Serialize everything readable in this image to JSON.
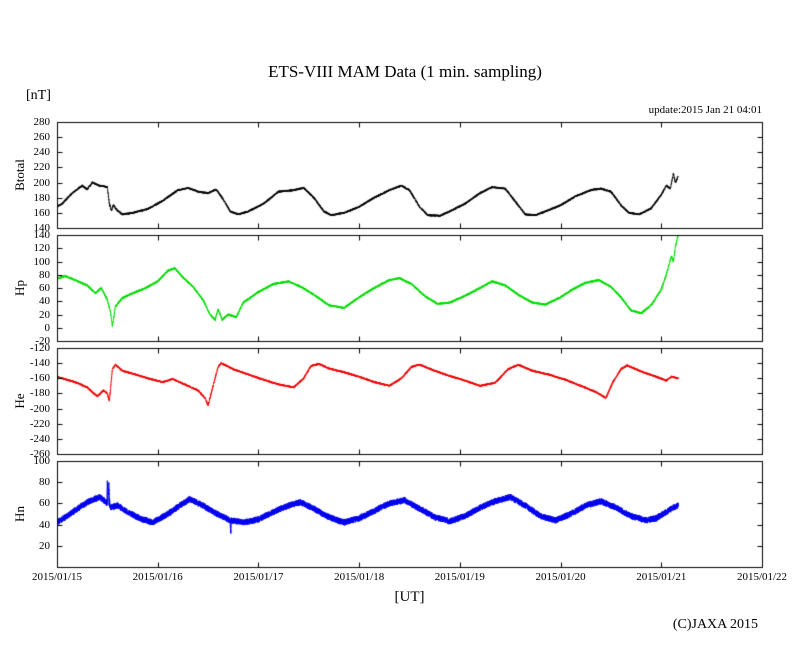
{
  "page": {
    "background": "#ffffff"
  },
  "chart_data": {
    "type": "line",
    "title": "ETS-VIII MAM Data (1 min. sampling)",
    "unit_label": "[nT]",
    "update_text": "update:2015 Jan 21 04:01",
    "xlabel": "[UT]",
    "copyright": "(C)JAXA 2015",
    "x_tick_labels": [
      "2015/01/15",
      "2015/01/16",
      "2015/01/17",
      "2015/01/18",
      "2015/01/19",
      "2015/01/20",
      "2015/01/21",
      "2015/01/22"
    ],
    "x_range_days": [
      0,
      7
    ],
    "data_end_day": 6.167,
    "sampling_minutes": 1,
    "grid": false,
    "legend": "none",
    "panels": [
      {
        "name": "Btotal",
        "color": "#000000",
        "ylim": [
          140,
          280
        ],
        "yticks": [
          140,
          160,
          180,
          200,
          220,
          240,
          260,
          280
        ],
        "noise_amplitude": 1.3,
        "points": [
          [
            0,
            168
          ],
          [
            0.05,
            172
          ],
          [
            0.15,
            186
          ],
          [
            0.25,
            196
          ],
          [
            0.3,
            191
          ],
          [
            0.35,
            200
          ],
          [
            0.42,
            196
          ],
          [
            0.5,
            194
          ],
          [
            0.52,
            172
          ],
          [
            0.54,
            163
          ],
          [
            0.56,
            170
          ],
          [
            0.6,
            163
          ],
          [
            0.65,
            158
          ],
          [
            0.75,
            160
          ],
          [
            0.9,
            165
          ],
          [
            1.05,
            176
          ],
          [
            1.2,
            190
          ],
          [
            1.3,
            193
          ],
          [
            1.4,
            188
          ],
          [
            1.5,
            186
          ],
          [
            1.58,
            191
          ],
          [
            1.65,
            178
          ],
          [
            1.72,
            162
          ],
          [
            1.8,
            158
          ],
          [
            1.9,
            162
          ],
          [
            2.05,
            172
          ],
          [
            2.2,
            188
          ],
          [
            2.35,
            190
          ],
          [
            2.45,
            193
          ],
          [
            2.55,
            180
          ],
          [
            2.65,
            162
          ],
          [
            2.72,
            157
          ],
          [
            2.85,
            160
          ],
          [
            3,
            168
          ],
          [
            3.15,
            180
          ],
          [
            3.3,
            190
          ],
          [
            3.42,
            196
          ],
          [
            3.5,
            190
          ],
          [
            3.6,
            168
          ],
          [
            3.68,
            157
          ],
          [
            3.8,
            156
          ],
          [
            3.9,
            162
          ],
          [
            4.05,
            172
          ],
          [
            4.2,
            186
          ],
          [
            4.32,
            194
          ],
          [
            4.45,
            192
          ],
          [
            4.55,
            175
          ],
          [
            4.65,
            158
          ],
          [
            4.75,
            157
          ],
          [
            4.85,
            162
          ],
          [
            5,
            170
          ],
          [
            5.15,
            182
          ],
          [
            5.3,
            190
          ],
          [
            5.4,
            192
          ],
          [
            5.5,
            188
          ],
          [
            5.6,
            170
          ],
          [
            5.68,
            160
          ],
          [
            5.78,
            158
          ],
          [
            5.9,
            166
          ],
          [
            6,
            184
          ],
          [
            6.05,
            196
          ],
          [
            6.09,
            192
          ],
          [
            6.12,
            212
          ],
          [
            6.14,
            200
          ],
          [
            6.167,
            208
          ]
        ]
      },
      {
        "name": "Hp",
        "color": "#00dd00",
        "ylim": [
          -20,
          140
        ],
        "yticks": [
          -20,
          0,
          20,
          40,
          60,
          80,
          100,
          120,
          140
        ],
        "noise_amplitude": 1.6,
        "points": [
          [
            0,
            74
          ],
          [
            0.08,
            78
          ],
          [
            0.18,
            72
          ],
          [
            0.3,
            64
          ],
          [
            0.38,
            52
          ],
          [
            0.44,
            60
          ],
          [
            0.5,
            42
          ],
          [
            0.53,
            25
          ],
          [
            0.55,
            2
          ],
          [
            0.58,
            32
          ],
          [
            0.65,
            45
          ],
          [
            0.75,
            52
          ],
          [
            0.88,
            60
          ],
          [
            1,
            70
          ],
          [
            1.1,
            86
          ],
          [
            1.17,
            90
          ],
          [
            1.25,
            76
          ],
          [
            1.35,
            62
          ],
          [
            1.45,
            42
          ],
          [
            1.52,
            20
          ],
          [
            1.57,
            12
          ],
          [
            1.6,
            28
          ],
          [
            1.64,
            12
          ],
          [
            1.7,
            20
          ],
          [
            1.78,
            16
          ],
          [
            1.85,
            38
          ],
          [
            2,
            54
          ],
          [
            2.15,
            66
          ],
          [
            2.3,
            70
          ],
          [
            2.42,
            62
          ],
          [
            2.55,
            50
          ],
          [
            2.7,
            34
          ],
          [
            2.85,
            30
          ],
          [
            3,
            46
          ],
          [
            3.15,
            60
          ],
          [
            3.3,
            72
          ],
          [
            3.4,
            75
          ],
          [
            3.52,
            66
          ],
          [
            3.65,
            48
          ],
          [
            3.78,
            36
          ],
          [
            3.9,
            38
          ],
          [
            4.05,
            48
          ],
          [
            4.2,
            60
          ],
          [
            4.32,
            70
          ],
          [
            4.45,
            64
          ],
          [
            4.6,
            48
          ],
          [
            4.72,
            38
          ],
          [
            4.85,
            35
          ],
          [
            5,
            46
          ],
          [
            5.12,
            58
          ],
          [
            5.25,
            68
          ],
          [
            5.38,
            72
          ],
          [
            5.5,
            62
          ],
          [
            5.6,
            46
          ],
          [
            5.7,
            26
          ],
          [
            5.8,
            22
          ],
          [
            5.9,
            34
          ],
          [
            6,
            58
          ],
          [
            6.05,
            80
          ],
          [
            6.1,
            108
          ],
          [
            6.12,
            100
          ],
          [
            6.14,
            122
          ],
          [
            6.167,
            140
          ]
        ]
      },
      {
        "name": "He",
        "color": "#ee0000",
        "ylim": [
          -260,
          -120
        ],
        "yticks": [
          -260,
          -240,
          -220,
          -200,
          -180,
          -160,
          -140,
          -120
        ],
        "noise_amplitude": 1.3,
        "points": [
          [
            0,
            -158
          ],
          [
            0.1,
            -162
          ],
          [
            0.2,
            -166
          ],
          [
            0.3,
            -172
          ],
          [
            0.4,
            -184
          ],
          [
            0.46,
            -176
          ],
          [
            0.5,
            -180
          ],
          [
            0.52,
            -190
          ],
          [
            0.55,
            -148
          ],
          [
            0.58,
            -142
          ],
          [
            0.65,
            -150
          ],
          [
            0.78,
            -155
          ],
          [
            0.9,
            -160
          ],
          [
            1.05,
            -165
          ],
          [
            1.15,
            -161
          ],
          [
            1.3,
            -170
          ],
          [
            1.4,
            -176
          ],
          [
            1.47,
            -186
          ],
          [
            1.5,
            -196
          ],
          [
            1.55,
            -170
          ],
          [
            1.6,
            -145
          ],
          [
            1.63,
            -140
          ],
          [
            1.75,
            -148
          ],
          [
            1.9,
            -155
          ],
          [
            2.05,
            -162
          ],
          [
            2.2,
            -168
          ],
          [
            2.35,
            -172
          ],
          [
            2.45,
            -160
          ],
          [
            2.52,
            -144
          ],
          [
            2.6,
            -141
          ],
          [
            2.7,
            -147
          ],
          [
            2.85,
            -152
          ],
          [
            3,
            -158
          ],
          [
            3.15,
            -165
          ],
          [
            3.3,
            -170
          ],
          [
            3.42,
            -160
          ],
          [
            3.52,
            -145
          ],
          [
            3.6,
            -142
          ],
          [
            3.75,
            -150
          ],
          [
            3.9,
            -157
          ],
          [
            4.05,
            -163
          ],
          [
            4.2,
            -170
          ],
          [
            4.35,
            -166
          ],
          [
            4.48,
            -148
          ],
          [
            4.58,
            -142
          ],
          [
            4.72,
            -150
          ],
          [
            4.88,
            -155
          ],
          [
            5.05,
            -162
          ],
          [
            5.2,
            -170
          ],
          [
            5.35,
            -178
          ],
          [
            5.45,
            -186
          ],
          [
            5.52,
            -165
          ],
          [
            5.6,
            -148
          ],
          [
            5.66,
            -143
          ],
          [
            5.8,
            -151
          ],
          [
            5.95,
            -158
          ],
          [
            6.05,
            -163
          ],
          [
            6.1,
            -158
          ],
          [
            6.167,
            -160
          ]
        ]
      },
      {
        "name": "Hn",
        "color": "#0000ee",
        "ylim": [
          0,
          100
        ],
        "yticks": [
          20,
          40,
          60,
          80,
          100
        ],
        "noise_amplitude": 3.0,
        "points": [
          [
            0,
            42
          ],
          [
            0.1,
            48
          ],
          [
            0.22,
            56
          ],
          [
            0.32,
            62
          ],
          [
            0.42,
            66
          ],
          [
            0.48,
            62
          ],
          [
            0.495,
            60
          ],
          [
            0.5,
            84
          ],
          [
            0.505,
            58
          ],
          [
            0.515,
            78
          ],
          [
            0.525,
            56
          ],
          [
            0.6,
            58
          ],
          [
            0.7,
            52
          ],
          [
            0.82,
            46
          ],
          [
            0.95,
            42
          ],
          [
            1.1,
            50
          ],
          [
            1.22,
            58
          ],
          [
            1.32,
            64
          ],
          [
            1.45,
            58
          ],
          [
            1.55,
            52
          ],
          [
            1.68,
            46
          ],
          [
            1.72,
            44
          ],
          [
            1.725,
            30
          ],
          [
            1.73,
            44
          ],
          [
            1.85,
            42
          ],
          [
            2,
            45
          ],
          [
            2.15,
            52
          ],
          [
            2.3,
            58
          ],
          [
            2.42,
            61
          ],
          [
            2.55,
            55
          ],
          [
            2.7,
            47
          ],
          [
            2.85,
            42
          ],
          [
            3,
            46
          ],
          [
            3.15,
            53
          ],
          [
            3.3,
            60
          ],
          [
            3.45,
            63
          ],
          [
            3.6,
            55
          ],
          [
            3.75,
            47
          ],
          [
            3.9,
            43
          ],
          [
            4.05,
            48
          ],
          [
            4.2,
            56
          ],
          [
            4.35,
            62
          ],
          [
            4.5,
            66
          ],
          [
            4.65,
            58
          ],
          [
            4.8,
            48
          ],
          [
            4.95,
            44
          ],
          [
            5.1,
            50
          ],
          [
            5.25,
            58
          ],
          [
            5.4,
            62
          ],
          [
            5.55,
            56
          ],
          [
            5.7,
            48
          ],
          [
            5.85,
            44
          ],
          [
            5.95,
            46
          ],
          [
            6.05,
            52
          ],
          [
            6.12,
            56
          ],
          [
            6.167,
            58
          ]
        ]
      }
    ]
  }
}
